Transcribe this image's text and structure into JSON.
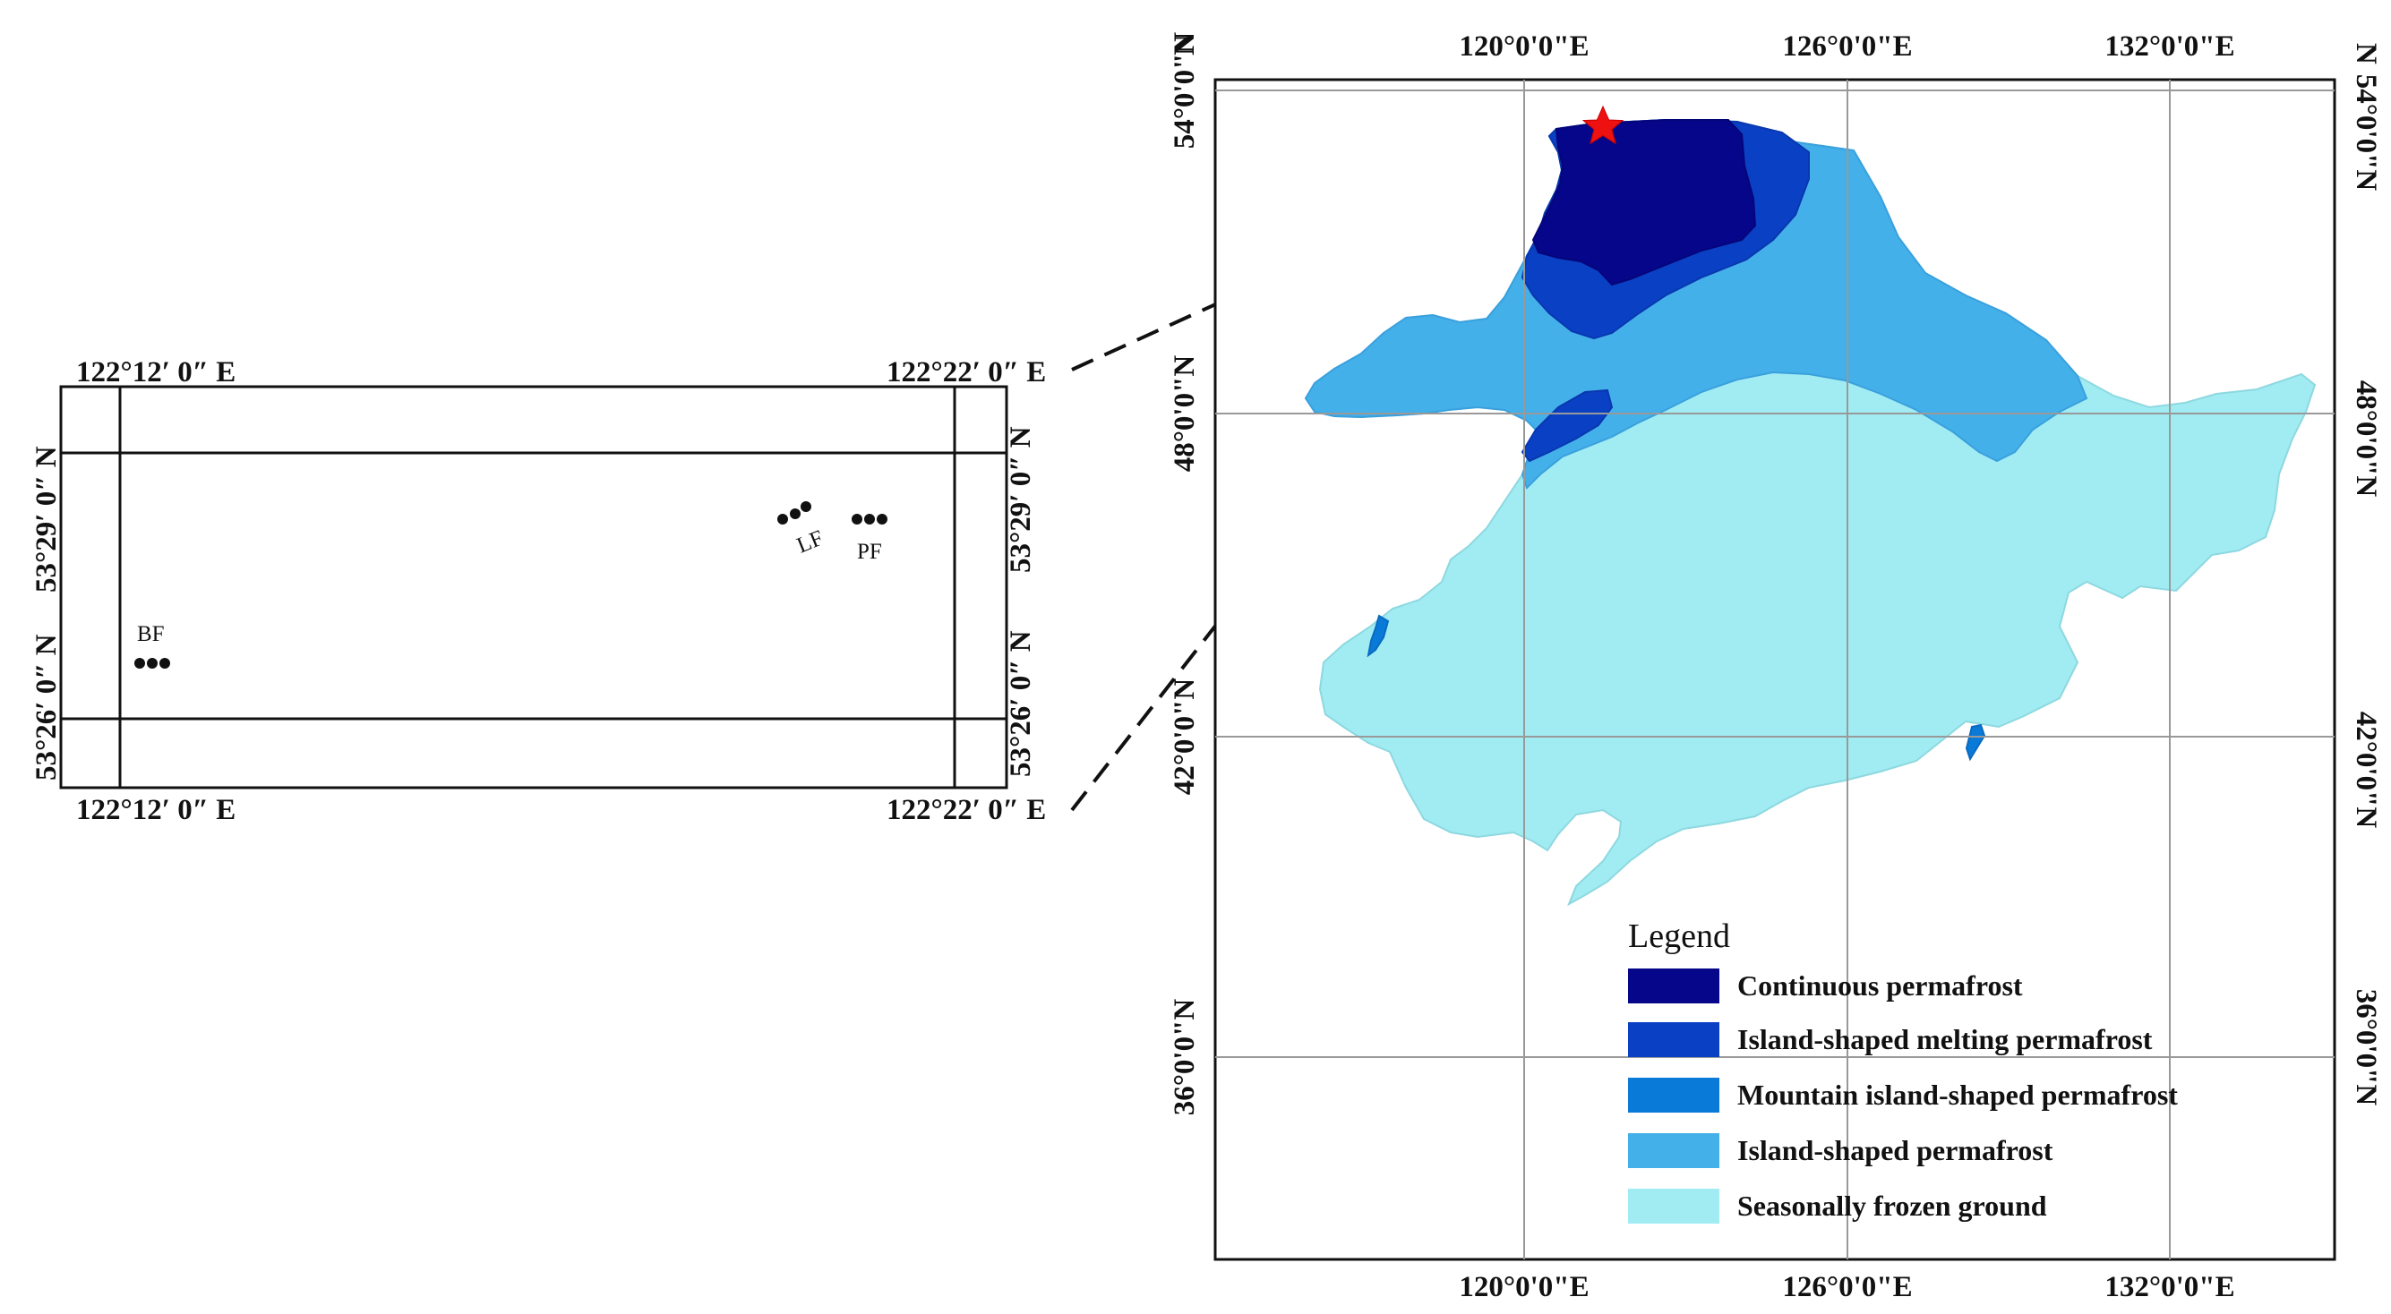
{
  "inset_map": {
    "top_left_lon": "122°12′ 0″ E",
    "top_right_lon": "122°22′ 0″ E",
    "bottom_left_lon": "122°12′ 0″ E",
    "bottom_right_lon": "122°22′ 0″ E",
    "left_upper_lat": "53°29′ 0″ N",
    "left_lower_lat": "53°26′ 0″ N",
    "right_upper_lat": "53°29′ 0″ N",
    "right_lower_lat": "53°26′ 0″ N",
    "sites": [
      {
        "label": "BF"
      },
      {
        "label": "LF"
      },
      {
        "label": "PF"
      }
    ]
  },
  "main_map": {
    "top_lon_labels": [
      "120°0'0\"E",
      "126°0'0\"E",
      "132°0'0\"E"
    ],
    "bottom_lon_labels": [
      "120°0'0\"E",
      "126°0'0\"E",
      "132°0'0\"E"
    ],
    "left_lat_labels": [
      "54°0'0\"N",
      "48°0'0\"N",
      "42°0'0\"N",
      "36°0'0\"N"
    ],
    "right_lat_labels": [
      "54°0'0\"N",
      "48°0'0\"N",
      "42°0'0\"N",
      "36°0'0\"N"
    ],
    "corner_label": "N",
    "study_site_marker": "star-icon"
  },
  "legend": {
    "title": "Legend",
    "items": [
      {
        "label": "Continuous permafrost",
        "color": "#06068a"
      },
      {
        "label": "Island-shaped melting permafrost",
        "color": "#0a40c4"
      },
      {
        "label": "Mountain island-shaped permafrost",
        "color": "#0a7ad8"
      },
      {
        "label": "Island-shaped permafrost",
        "color": "#44b0ea"
      },
      {
        "label": "Seasonally frozen ground",
        "color": "#a0ecf2"
      }
    ]
  },
  "colors": {
    "star": "#ee1111",
    "grid": "#999999",
    "frame": "#111111"
  }
}
